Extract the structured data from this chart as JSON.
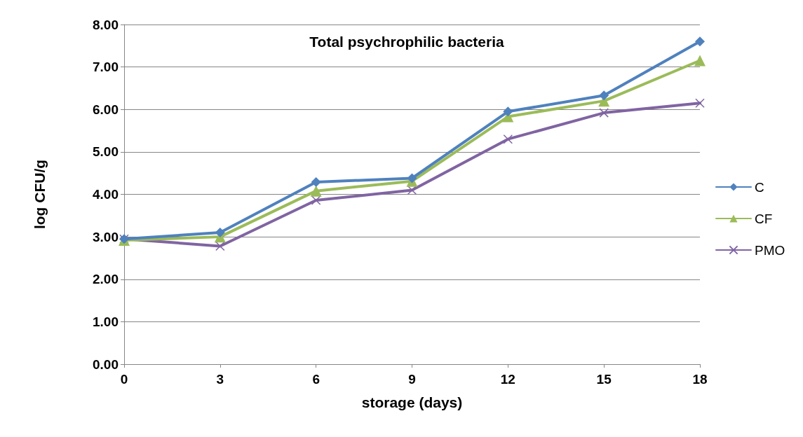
{
  "chart_data": {
    "type": "line",
    "title": "Total psychrophilic bacteria",
    "xlabel": "storage (days)",
    "ylabel": "log CFU/g",
    "x": [
      0,
      3,
      6,
      9,
      12,
      15,
      18
    ],
    "series": [
      {
        "name": "C",
        "color": "#4f81bd",
        "marker": "diamond",
        "values": [
          2.95,
          3.1,
          4.29,
          4.38,
          5.95,
          6.33,
          7.6
        ]
      },
      {
        "name": "CF",
        "color": "#9bbb59",
        "marker": "triangle",
        "values": [
          2.92,
          3.0,
          4.08,
          4.31,
          5.83,
          6.2,
          7.15
        ]
      },
      {
        "name": "PMO",
        "color": "#8064a2",
        "marker": "cross",
        "values": [
          2.95,
          2.78,
          3.86,
          4.1,
          5.3,
          5.92,
          6.15
        ]
      }
    ],
    "xlim": [
      0,
      18
    ],
    "xticks": [
      0,
      3,
      6,
      9,
      12,
      15,
      18
    ],
    "ylim": [
      0,
      8
    ],
    "yticks": [
      {
        "value": 0,
        "label": "0.00"
      },
      {
        "value": 1,
        "label": "1.00"
      },
      {
        "value": 2,
        "label": "2.00"
      },
      {
        "value": 3,
        "label": "3.00"
      },
      {
        "value": 4,
        "label": "4.00"
      },
      {
        "value": 5,
        "label": "5.00"
      },
      {
        "value": 6,
        "label": "6.00"
      },
      {
        "value": 7,
        "label": "7.00"
      },
      {
        "value": 8,
        "label": "8.00"
      }
    ],
    "grid": "y",
    "legend": "right",
    "line_style": "solid"
  }
}
